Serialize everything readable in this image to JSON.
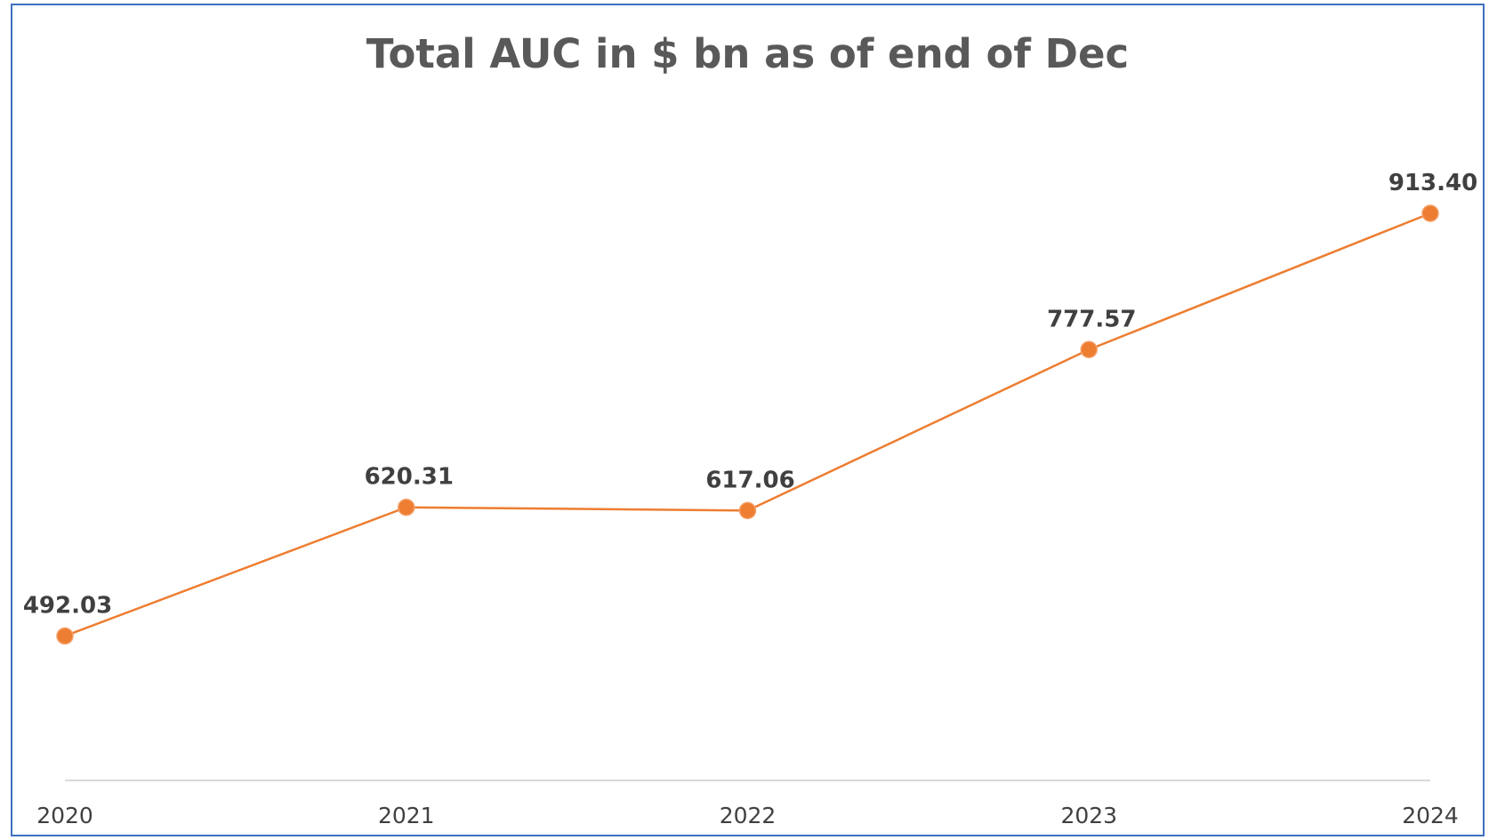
{
  "chart_data": {
    "type": "line",
    "title": "Total AUC in $ bn as of end of Dec",
    "categories": [
      "2020",
      "2021",
      "2022",
      "2023",
      "2024"
    ],
    "series": [
      {
        "values": [
          492.03,
          620.31,
          617.06,
          777.57,
          913.4
        ]
      }
    ],
    "data_labels": [
      "492.03",
      "620.31",
      "617.06",
      "777.57",
      "913.40"
    ],
    "xlabel": "",
    "ylabel": "",
    "ylim": [
      348,
      1002
    ],
    "grid": false,
    "legend": "none",
    "line_color": "#ED7D31",
    "marker_color": "#ED7D31",
    "axis_color": "#D9D9D9",
    "border_color": "#3F6FC1"
  }
}
